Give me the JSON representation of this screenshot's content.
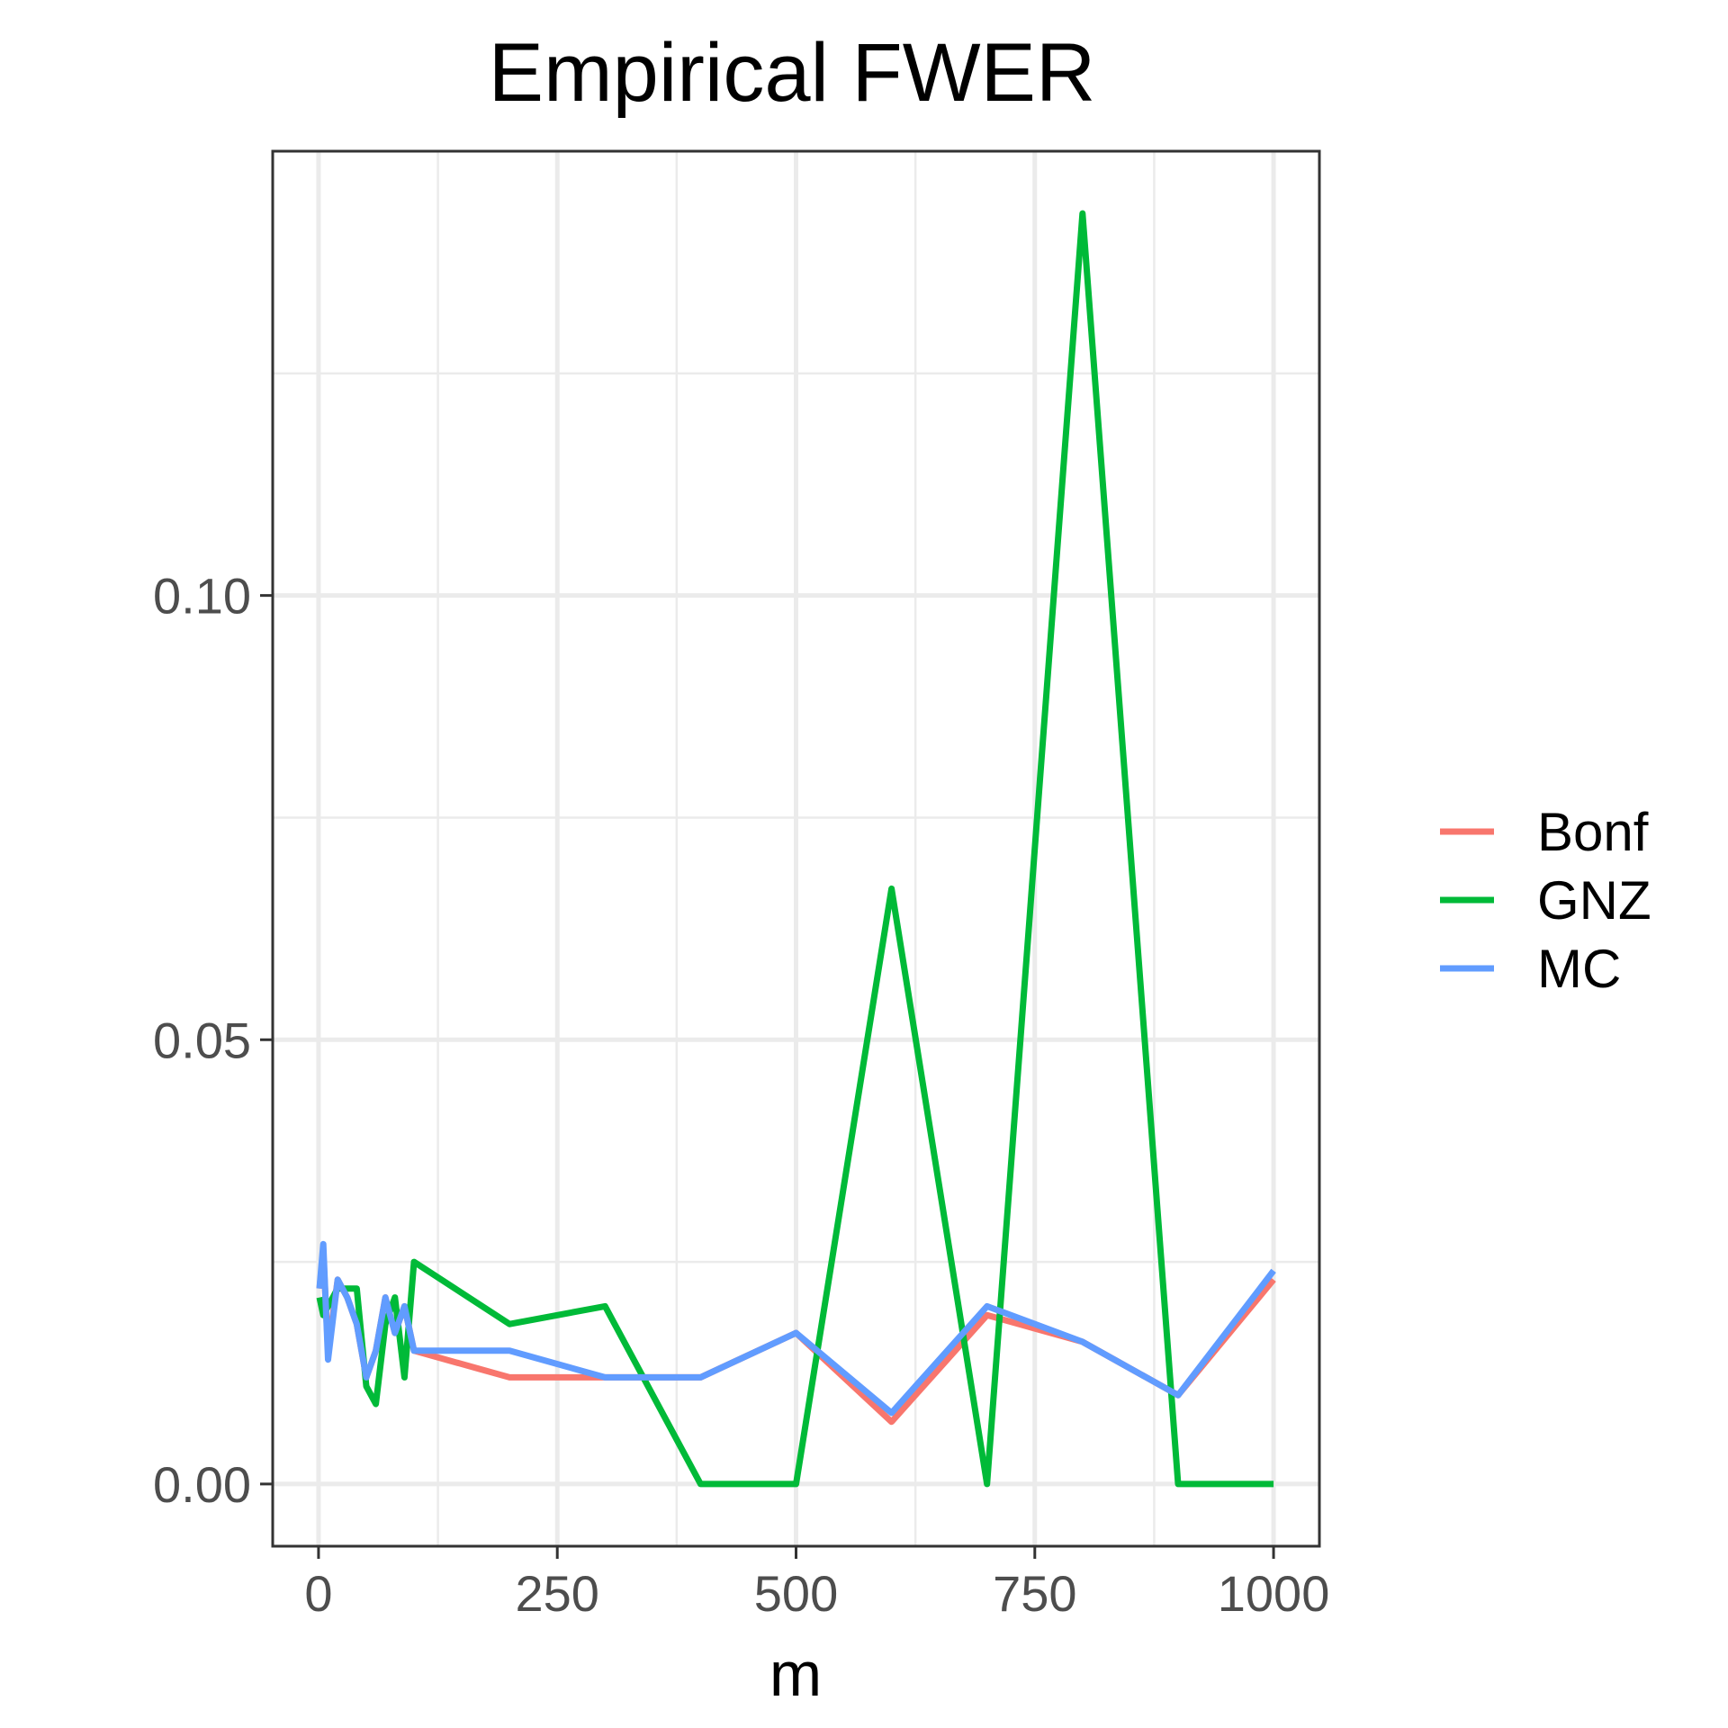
{
  "chart_data": {
    "type": "line",
    "title": "Empirical FWER",
    "xlabel": "m",
    "ylabel": "",
    "xlim": [
      -48,
      1048
    ],
    "ylim": [
      -0.007,
      0.15
    ],
    "x_ticks": [
      0,
      250,
      500,
      750,
      1000
    ],
    "x_tick_labels": [
      "0",
      "250",
      "500",
      "750",
      "1000"
    ],
    "y_ticks": [
      0.0,
      0.05,
      0.1
    ],
    "y_tick_labels": [
      "0.00",
      "0.05",
      "0.10"
    ],
    "grid": true,
    "legend_position": "right",
    "series": [
      {
        "name": "Bonf",
        "color": "#F8766D",
        "x": [
          1,
          5,
          10,
          20,
          30,
          40,
          50,
          60,
          70,
          80,
          90,
          100,
          200,
          300,
          400,
          500,
          600,
          700,
          800,
          900,
          1000
        ],
        "y": [
          0.022,
          0.026,
          0.015,
          0.023,
          0.021,
          0.018,
          0.012,
          0.015,
          0.021,
          0.017,
          0.02,
          0.015,
          0.012,
          0.012,
          0.012,
          0.017,
          0.007,
          0.019,
          0.016,
          0.01,
          0.023
        ]
      },
      {
        "name": "GNZ",
        "color": "#00BA38",
        "x": [
          1,
          5,
          10,
          20,
          30,
          40,
          50,
          60,
          70,
          80,
          90,
          100,
          200,
          300,
          400,
          500,
          600,
          700,
          800,
          900,
          1000
        ],
        "y": [
          0.021,
          0.019,
          0.02,
          0.022,
          0.022,
          0.022,
          0.011,
          0.009,
          0.018,
          0.021,
          0.012,
          0.025,
          0.018,
          0.02,
          0.0,
          0.0,
          0.067,
          0.0,
          0.143,
          0.0,
          0.0
        ]
      },
      {
        "name": "MC",
        "color": "#619CFF",
        "x": [
          1,
          5,
          10,
          20,
          30,
          40,
          50,
          60,
          70,
          80,
          90,
          100,
          200,
          300,
          400,
          500,
          600,
          700,
          800,
          900,
          1000
        ],
        "y": [
          0.022,
          0.027,
          0.014,
          0.023,
          0.021,
          0.018,
          0.012,
          0.015,
          0.021,
          0.017,
          0.02,
          0.015,
          0.015,
          0.012,
          0.012,
          0.017,
          0.008,
          0.02,
          0.016,
          0.01,
          0.024
        ]
      }
    ]
  }
}
